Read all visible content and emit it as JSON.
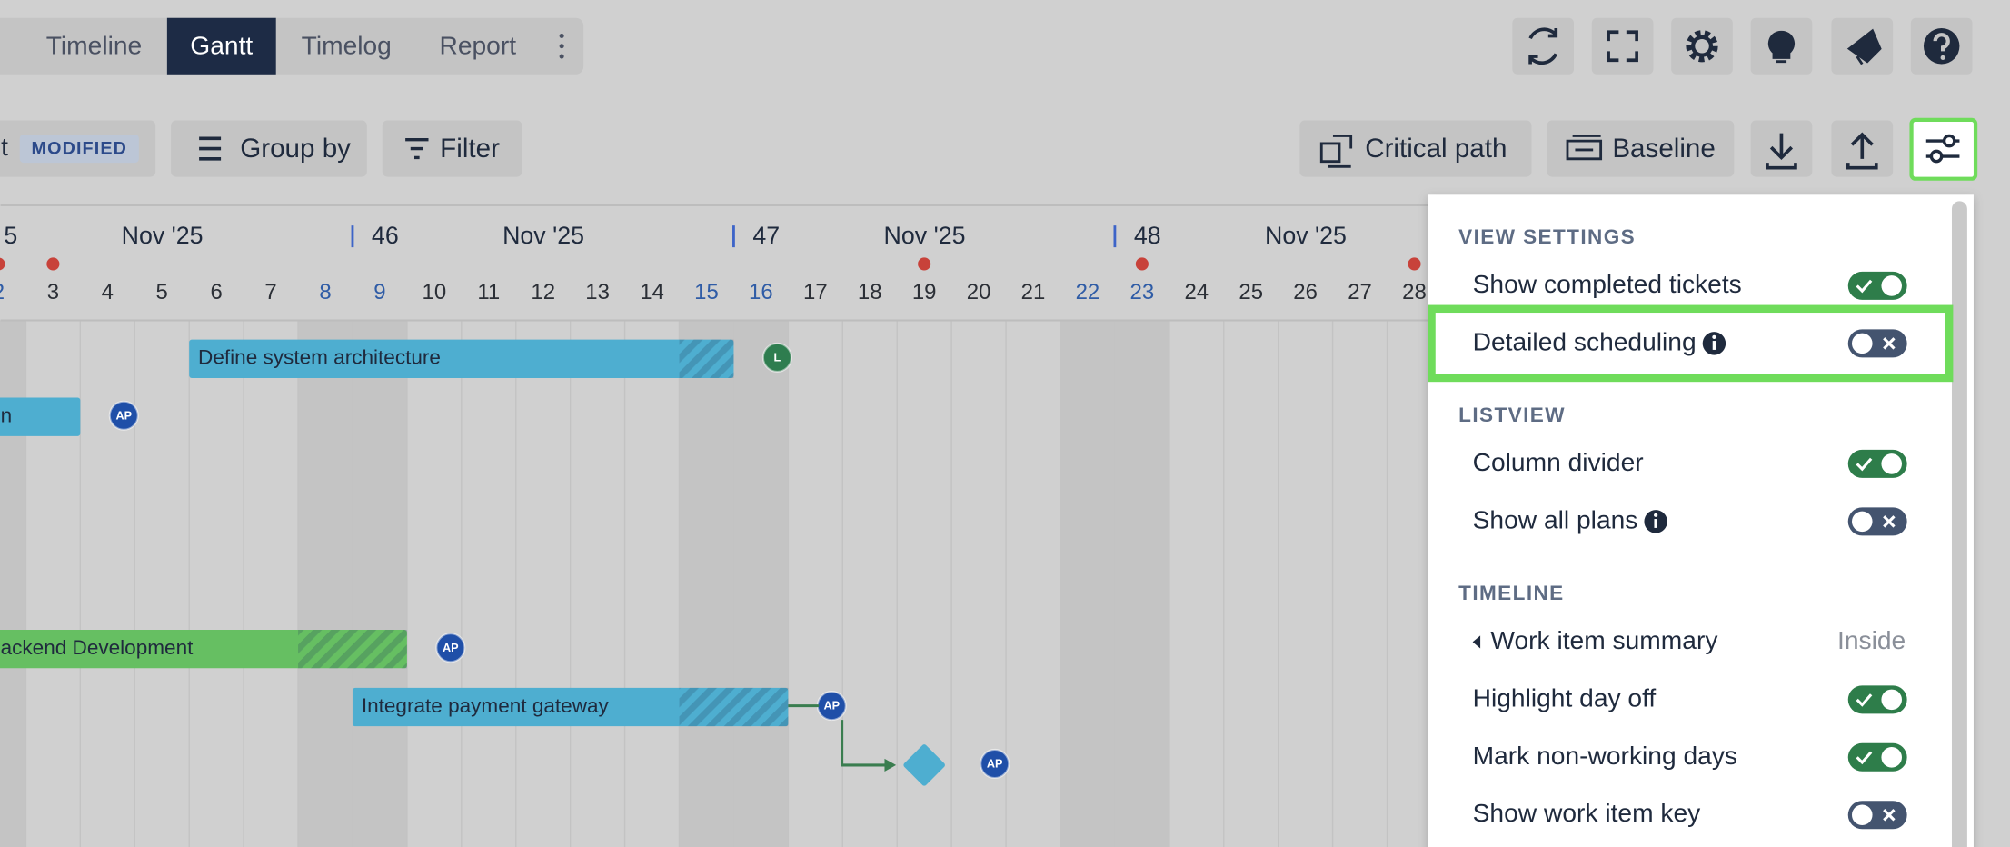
{
  "tabs": [
    {
      "label": "Timeline",
      "active": false
    },
    {
      "label": "Gantt",
      "active": true
    },
    {
      "label": "Timelog",
      "active": false
    },
    {
      "label": "Report",
      "active": false
    }
  ],
  "toolbar": {
    "view_name_fragment": "t",
    "view_badge": "MODIFIED",
    "group_by": "Group by",
    "filter": "Filter",
    "critical_path": "Critical path",
    "baseline": "Baseline"
  },
  "timeline": {
    "weeks": [
      {
        "number": "5",
        "month": "Nov '25",
        "start_day": 2
      },
      {
        "number": "46",
        "month": "Nov '25",
        "start_day": 9
      },
      {
        "number": "47",
        "month": "Nov '25",
        "start_day": 16
      },
      {
        "number": "48",
        "month": "Nov '25",
        "start_day": 23
      }
    ],
    "days": [
      {
        "day": 2,
        "weekend": true,
        "holiday": true
      },
      {
        "day": 3,
        "weekend": false,
        "holiday": true
      },
      {
        "day": 4,
        "weekend": false,
        "holiday": false
      },
      {
        "day": 5,
        "weekend": false,
        "holiday": false
      },
      {
        "day": 6,
        "weekend": false,
        "holiday": false
      },
      {
        "day": 7,
        "weekend": false,
        "holiday": false
      },
      {
        "day": 8,
        "weekend": true,
        "holiday": false
      },
      {
        "day": 9,
        "weekend": true,
        "holiday": false
      },
      {
        "day": 10,
        "weekend": false,
        "holiday": false
      },
      {
        "day": 11,
        "weekend": false,
        "holiday": false
      },
      {
        "day": 12,
        "weekend": false,
        "holiday": false
      },
      {
        "day": 13,
        "weekend": false,
        "holiday": false
      },
      {
        "day": 14,
        "weekend": false,
        "holiday": false
      },
      {
        "day": 15,
        "weekend": true,
        "holiday": false
      },
      {
        "day": 16,
        "weekend": true,
        "holiday": false
      },
      {
        "day": 17,
        "weekend": false,
        "holiday": false
      },
      {
        "day": 18,
        "weekend": false,
        "holiday": false
      },
      {
        "day": 19,
        "weekend": false,
        "holiday": true
      },
      {
        "day": 20,
        "weekend": false,
        "holiday": false
      },
      {
        "day": 21,
        "weekend": false,
        "holiday": false
      },
      {
        "day": 22,
        "weekend": true,
        "holiday": false
      },
      {
        "day": 23,
        "weekend": true,
        "holiday": true
      },
      {
        "day": 24,
        "weekend": false,
        "holiday": false
      },
      {
        "day": 25,
        "weekend": false,
        "holiday": false
      },
      {
        "day": 26,
        "weekend": false,
        "holiday": false
      },
      {
        "day": 27,
        "weekend": false,
        "holiday": false
      },
      {
        "day": 28,
        "weekend": false,
        "holiday": true
      }
    ],
    "tasks": [
      {
        "title": "Define system architecture",
        "row": 0,
        "start": 6,
        "end": 15,
        "overdue_from": 15,
        "color": "#4eaed0",
        "assignee": "L",
        "assignee_color": "#2e7d4f"
      },
      {
        "title": "n",
        "row": 1,
        "start": 1,
        "end": 3,
        "overdue_from": null,
        "color": "#4eaed0",
        "assignee": "AP",
        "assignee_color": "#1f4fa8"
      },
      {
        "title": "ackend Development",
        "row": 5,
        "start": 1,
        "end": 9,
        "overdue_from": 8,
        "color": "#66bf62",
        "assignee": "AP",
        "assignee_color": "#1f4fa8"
      },
      {
        "title": "Integrate payment gateway",
        "row": 6,
        "start": 9,
        "end": 16,
        "overdue_from": 15,
        "color": "#4eaed0",
        "assignee": "AP",
        "assignee_color": "#1f4fa8"
      }
    ],
    "milestones": [
      {
        "row": 7,
        "day": 19,
        "color": "#4eaed0",
        "assignee": "AP",
        "assignee_color": "#1f4fa8",
        "depends_on_task": 3
      }
    ]
  },
  "settings": {
    "sections": [
      {
        "title": "VIEW SETTINGS",
        "items": [
          {
            "label": "Show completed tickets",
            "toggle": true
          },
          {
            "label": "Detailed scheduling",
            "info": true,
            "toggle": false,
            "highlighted": true
          }
        ]
      },
      {
        "title": "LISTVIEW",
        "items": [
          {
            "label": "Column divider",
            "toggle": true
          },
          {
            "label": "Show all plans",
            "info": true,
            "toggle": false
          }
        ]
      },
      {
        "title": "TIMELINE",
        "items": [
          {
            "label": "Work item summary",
            "collapsible": true,
            "value": "Inside"
          },
          {
            "label": "Highlight day off",
            "toggle": true
          },
          {
            "label": "Mark non-working days",
            "toggle": true
          },
          {
            "label": "Show work item key",
            "toggle": false
          }
        ]
      }
    ]
  }
}
